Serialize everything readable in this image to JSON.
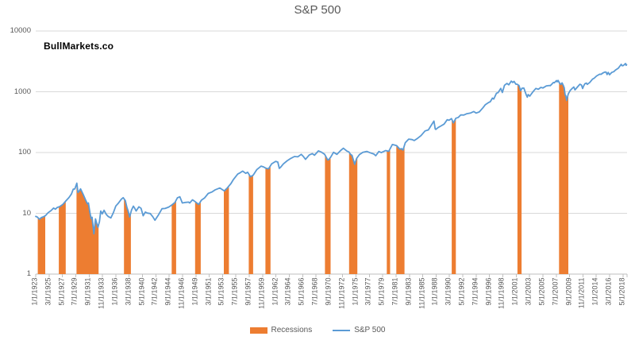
{
  "title": "S&P 500",
  "watermark": "BullMarkets.co",
  "legend": {
    "recessions_label": "Recessions",
    "sp500_label": "S&P 500"
  },
  "colors": {
    "line": "#5B9BD5",
    "recession": "#ED7D31",
    "gridline": "#D9D9D9",
    "axis": "#BFBFBF",
    "text": "#595959"
  },
  "chart_data": {
    "type": "line",
    "title": "S&P 500",
    "legend_position": "bottom",
    "grid": "horizontal",
    "y_axis": {
      "scale": "log",
      "ticks": [
        1,
        10,
        100,
        1000,
        10000
      ],
      "range": [
        1,
        10000
      ]
    },
    "x_axis": {
      "range_years": [
        1923.0,
        2019.0
      ],
      "tick_labels": [
        "1/1/1923",
        "3/1/1925",
        "5/1/1927",
        "7/1/1929",
        "9/1/1931",
        "11/1/1933",
        "1/1/1936",
        "3/1/1938",
        "5/1/1940",
        "7/1/1942",
        "9/1/1944",
        "11/1/1946",
        "1/1/1949",
        "3/1/1951",
        "5/1/1953",
        "7/1/1955",
        "9/1/1957",
        "11/1/1959",
        "1/1/1962",
        "3/1/1964",
        "5/1/1966",
        "7/1/1968",
        "9/1/1970",
        "11/1/1972",
        "1/1/1975",
        "3/1/1977",
        "5/1/1979",
        "7/1/1981",
        "9/1/1983",
        "11/1/1985",
        "1/1/1988",
        "3/1/1990",
        "5/1/1992",
        "7/1/1994",
        "9/1/1996",
        "11/1/1998",
        "1/1/2001",
        "3/1/2003",
        "5/1/2005",
        "7/1/2007",
        "9/1/2009",
        "11/1/2011",
        "1/1/2014",
        "3/1/2016",
        "5/1/2018"
      ]
    },
    "series": [
      {
        "name": "S&P 500",
        "points": [
          [
            1923.0,
            8.9
          ],
          [
            1923.25,
            8.7
          ],
          [
            1923.6,
            8.0
          ],
          [
            1923.9,
            8.5
          ],
          [
            1924.3,
            8.8
          ],
          [
            1924.6,
            9.2
          ],
          [
            1925.0,
            10.2
          ],
          [
            1925.5,
            11.1
          ],
          [
            1925.9,
            12.2
          ],
          [
            1926.2,
            11.7
          ],
          [
            1926.5,
            12.5
          ],
          [
            1926.9,
            12.9
          ],
          [
            1927.4,
            14.0
          ],
          [
            1927.9,
            16.0
          ],
          [
            1928.4,
            18.2
          ],
          [
            1928.8,
            20.8
          ],
          [
            1929.1,
            25.0
          ],
          [
            1929.35,
            25.2
          ],
          [
            1929.67,
            31.3
          ],
          [
            1929.85,
            22.0
          ],
          [
            1930.0,
            22.8
          ],
          [
            1930.28,
            25.3
          ],
          [
            1930.7,
            20.5
          ],
          [
            1931.1,
            16.5
          ],
          [
            1931.4,
            14.3
          ],
          [
            1931.55,
            14.8
          ],
          [
            1931.8,
            10.3
          ],
          [
            1932.0,
            8.2
          ],
          [
            1932.15,
            8.6
          ],
          [
            1932.45,
            4.6
          ],
          [
            1932.7,
            8.1
          ],
          [
            1932.9,
            6.9
          ],
          [
            1933.1,
            5.9
          ],
          [
            1933.35,
            7.3
          ],
          [
            1933.55,
            10.9
          ],
          [
            1933.8,
            9.8
          ],
          [
            1934.1,
            11.2
          ],
          [
            1934.45,
            9.6
          ],
          [
            1934.75,
            8.9
          ],
          [
            1935.2,
            8.4
          ],
          [
            1935.6,
            10.2
          ],
          [
            1936.0,
            13.2
          ],
          [
            1936.4,
            14.6
          ],
          [
            1936.9,
            17.1
          ],
          [
            1937.2,
            18.1
          ],
          [
            1937.55,
            16.2
          ],
          [
            1937.8,
            12.5
          ],
          [
            1938.0,
            11.0
          ],
          [
            1938.25,
            8.7
          ],
          [
            1938.55,
            11.3
          ],
          [
            1938.85,
            13.1
          ],
          [
            1939.05,
            12.2
          ],
          [
            1939.3,
            10.9
          ],
          [
            1939.75,
            12.8
          ],
          [
            1940.1,
            12.1
          ],
          [
            1940.45,
            9.1
          ],
          [
            1940.8,
            10.5
          ],
          [
            1941.1,
            10.1
          ],
          [
            1941.6,
            9.9
          ],
          [
            1942.0,
            8.8
          ],
          [
            1942.35,
            7.7
          ],
          [
            1942.9,
            9.3
          ],
          [
            1943.5,
            11.9
          ],
          [
            1944.0,
            12.0
          ],
          [
            1944.6,
            12.7
          ],
          [
            1945.1,
            13.7
          ],
          [
            1945.6,
            15.1
          ],
          [
            1946.0,
            18.0
          ],
          [
            1946.4,
            18.7
          ],
          [
            1946.8,
            14.8
          ],
          [
            1947.3,
            15.1
          ],
          [
            1947.8,
            15.3
          ],
          [
            1948.0,
            14.8
          ],
          [
            1948.45,
            16.7
          ],
          [
            1948.9,
            15.5
          ],
          [
            1949.45,
            14.0
          ],
          [
            1949.9,
            16.5
          ],
          [
            1950.4,
            17.8
          ],
          [
            1951.0,
            21.2
          ],
          [
            1951.6,
            22.4
          ],
          [
            1952.1,
            24.2
          ],
          [
            1952.9,
            26.1
          ],
          [
            1953.6,
            23.4
          ],
          [
            1954.1,
            26.1
          ],
          [
            1954.7,
            30.9
          ],
          [
            1955.1,
            36.1
          ],
          [
            1955.8,
            44.3
          ],
          [
            1956.2,
            46.6
          ],
          [
            1956.6,
            49.4
          ],
          [
            1957.1,
            45.4
          ],
          [
            1957.4,
            47.4
          ],
          [
            1957.85,
            40.0
          ],
          [
            1958.3,
            42.3
          ],
          [
            1958.9,
            52.5
          ],
          [
            1959.6,
            59.7
          ],
          [
            1960.0,
            58.0
          ],
          [
            1960.35,
            55.3
          ],
          [
            1960.8,
            54.0
          ],
          [
            1961.3,
            65.1
          ],
          [
            1961.95,
            71.7
          ],
          [
            1962.3,
            69.6
          ],
          [
            1962.55,
            54.8
          ],
          [
            1962.8,
            58.0
          ],
          [
            1963.2,
            65.1
          ],
          [
            1963.8,
            73.0
          ],
          [
            1964.4,
            80.0
          ],
          [
            1965.0,
            86.1
          ],
          [
            1965.55,
            84.9
          ],
          [
            1966.1,
            93.3
          ],
          [
            1966.45,
            86.1
          ],
          [
            1966.8,
            77.1
          ],
          [
            1967.4,
            91.2
          ],
          [
            1967.9,
            95.8
          ],
          [
            1968.25,
            90.2
          ],
          [
            1968.9,
            106.5
          ],
          [
            1969.4,
            101.3
          ],
          [
            1969.9,
            93.4
          ],
          [
            1970.4,
            75.7
          ],
          [
            1970.55,
            76.0
          ],
          [
            1970.9,
            84.3
          ],
          [
            1971.35,
            100.8
          ],
          [
            1971.9,
            93.4
          ],
          [
            1972.5,
            107.7
          ],
          [
            1972.95,
            117.5
          ],
          [
            1973.5,
            105.8
          ],
          [
            1973.85,
            102.0
          ],
          [
            1974.1,
            93.5
          ],
          [
            1974.35,
            90.0
          ],
          [
            1974.78,
            64.0
          ],
          [
            1975.1,
            80.1
          ],
          [
            1975.55,
            92.5
          ],
          [
            1976.1,
            100.9
          ],
          [
            1976.75,
            104.2
          ],
          [
            1977.3,
            99.1
          ],
          [
            1977.9,
            94.3
          ],
          [
            1978.2,
            88.7
          ],
          [
            1978.7,
            103.9
          ],
          [
            1979.1,
            99.7
          ],
          [
            1979.8,
            107.8
          ],
          [
            1980.3,
            104.7
          ],
          [
            1980.9,
            135.7
          ],
          [
            1981.3,
            132.8
          ],
          [
            1981.6,
            129.6
          ],
          [
            1982.1,
            114.0
          ],
          [
            1982.4,
            116.0
          ],
          [
            1982.62,
            109.7
          ],
          [
            1983.0,
            145.3
          ],
          [
            1983.55,
            166.4
          ],
          [
            1984.1,
            163.4
          ],
          [
            1984.45,
            157.6
          ],
          [
            1985.0,
            171.6
          ],
          [
            1985.55,
            189.6
          ],
          [
            1986.2,
            226.9
          ],
          [
            1986.75,
            236.1
          ],
          [
            1987.15,
            274.1
          ],
          [
            1987.65,
            329.4
          ],
          [
            1987.85,
            245.0
          ],
          [
            1987.95,
            240.1
          ],
          [
            1988.35,
            258.9
          ],
          [
            1988.8,
            273.7
          ],
          [
            1989.3,
            294.0
          ],
          [
            1989.8,
            347.0
          ],
          [
            1990.1,
            339.0
          ],
          [
            1990.5,
            361.2
          ],
          [
            1990.8,
            307.1
          ],
          [
            1991.2,
            367.1
          ],
          [
            1991.6,
            377.9
          ],
          [
            1992.0,
            416.1
          ],
          [
            1992.5,
            414.6
          ],
          [
            1993.0,
            435.2
          ],
          [
            1993.6,
            448.1
          ],
          [
            1994.1,
            472.0
          ],
          [
            1994.5,
            446.9
          ],
          [
            1995.0,
            465.3
          ],
          [
            1995.6,
            544.8
          ],
          [
            1996.0,
            614.4
          ],
          [
            1996.55,
            668.5
          ],
          [
            1996.8,
            687.3
          ],
          [
            1997.15,
            786.2
          ],
          [
            1997.35,
            757.1
          ],
          [
            1997.8,
            947.3
          ],
          [
            1998.05,
            963.4
          ],
          [
            1998.5,
            1133.8
          ],
          [
            1998.75,
            973.9
          ],
          [
            1999.1,
            1279.6
          ],
          [
            1999.5,
            1372.7
          ],
          [
            1999.8,
            1300.0
          ],
          [
            2000.2,
            1498.6
          ],
          [
            2000.45,
            1420.6
          ],
          [
            2000.65,
            1485.5
          ],
          [
            2000.95,
            1330.9
          ],
          [
            2001.1,
            1335.6
          ],
          [
            2001.45,
            1270.4
          ],
          [
            2001.72,
            1040.9
          ],
          [
            2001.95,
            1144.9
          ],
          [
            2002.25,
            1147.4
          ],
          [
            2002.6,
            911.6
          ],
          [
            2002.8,
            815.3
          ],
          [
            2002.95,
            899.2
          ],
          [
            2003.2,
            848.2
          ],
          [
            2003.75,
            1008.0
          ],
          [
            2004.2,
            1133.5
          ],
          [
            2004.6,
            1098.7
          ],
          [
            2005.0,
            1181.4
          ],
          [
            2005.35,
            1156.9
          ],
          [
            2005.9,
            1249.5
          ],
          [
            2006.4,
            1270.1
          ],
          [
            2006.55,
            1260.0
          ],
          [
            2007.05,
            1424.2
          ],
          [
            2007.2,
            1407.0
          ],
          [
            2007.55,
            1530.6
          ],
          [
            2007.65,
            1455.3
          ],
          [
            2007.8,
            1540.0
          ],
          [
            2008.05,
            1378.8
          ],
          [
            2008.25,
            1322.7
          ],
          [
            2008.45,
            1400.4
          ],
          [
            2008.65,
            1267.4
          ],
          [
            2008.8,
            1164.7
          ],
          [
            2008.95,
            880.0
          ],
          [
            2009.05,
            865.6
          ],
          [
            2009.2,
            720.0
          ],
          [
            2009.45,
            919.1
          ],
          [
            2009.75,
            1044.6
          ],
          [
            2010.05,
            1123.6
          ],
          [
            2010.35,
            1197.3
          ],
          [
            2010.55,
            1071.3
          ],
          [
            2010.95,
            1198.9
          ],
          [
            2011.35,
            1331.5
          ],
          [
            2011.6,
            1287.3
          ],
          [
            2011.78,
            1131.4
          ],
          [
            2011.95,
            1244.0
          ],
          [
            2012.15,
            1350.0
          ],
          [
            2012.4,
            1386.4
          ],
          [
            2012.55,
            1323.5
          ],
          [
            2012.95,
            1422.3
          ],
          [
            2013.4,
            1614.4
          ],
          [
            2013.65,
            1668.7
          ],
          [
            2014.05,
            1822.4
          ],
          [
            2014.55,
            1947.1
          ],
          [
            2014.8,
            1937.3
          ],
          [
            2015.05,
            2028.2
          ],
          [
            2015.4,
            2111.9
          ],
          [
            2015.6,
            2102.1
          ],
          [
            2015.75,
            1920.0
          ],
          [
            2015.95,
            2080.4
          ],
          [
            2016.15,
            1904.4
          ],
          [
            2016.5,
            2075.5
          ],
          [
            2016.85,
            2143.0
          ],
          [
            2017.1,
            2275.1
          ],
          [
            2017.6,
            2454.1
          ],
          [
            2018.05,
            2823.8
          ],
          [
            2018.2,
            2674.0
          ],
          [
            2018.4,
            2701.5
          ],
          [
            2018.65,
            2857.8
          ],
          [
            2018.75,
            2914.0
          ],
          [
            2018.85,
            2723.0
          ],
          [
            2018.92,
            2790.0
          ]
        ]
      }
    ],
    "recessions": {
      "name": "Recessions",
      "intervals": [
        [
          1923.33,
          1924.54
        ],
        [
          1926.75,
          1927.87
        ],
        [
          1929.62,
          1933.21
        ],
        [
          1937.33,
          1938.45
        ],
        [
          1945.08,
          1945.79
        ],
        [
          1948.87,
          1949.79
        ],
        [
          1953.54,
          1954.37
        ],
        [
          1957.58,
          1958.29
        ],
        [
          1960.29,
          1961.12
        ],
        [
          1969.96,
          1970.87
        ],
        [
          1973.87,
          1975.21
        ],
        [
          1980.0,
          1980.54
        ],
        [
          1981.54,
          1982.87
        ],
        [
          1990.54,
          1991.21
        ],
        [
          2001.21,
          2001.87
        ],
        [
          2007.96,
          2009.46
        ]
      ]
    }
  }
}
